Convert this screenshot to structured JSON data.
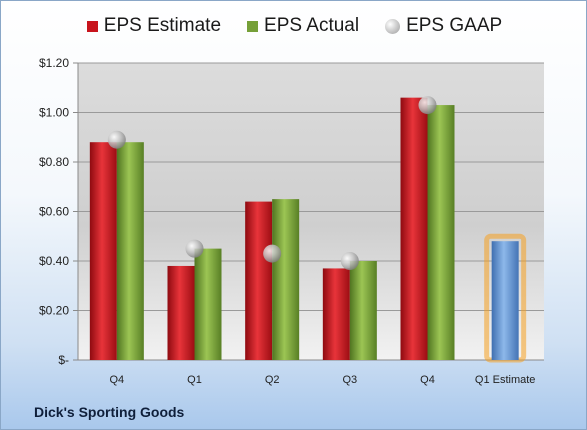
{
  "chart_data": {
    "type": "bar",
    "categories": [
      "Q4",
      "Q1",
      "Q2",
      "Q3",
      "Q4",
      "Q1 Estimate"
    ],
    "series": [
      {
        "name": "EPS Estimate",
        "values": [
          0.88,
          0.38,
          0.64,
          0.37,
          1.06,
          null
        ],
        "color": "#c8141c"
      },
      {
        "name": "EPS Actual",
        "values": [
          0.88,
          0.45,
          0.65,
          0.4,
          1.03,
          null
        ],
        "color": "#76a038"
      },
      {
        "name": "EPS GAAP",
        "values": [
          0.89,
          0.45,
          0.43,
          0.4,
          1.03,
          null
        ],
        "color": "#a0a0a0"
      }
    ],
    "forecast": {
      "category": "Q1 Estimate",
      "value": 0.48,
      "color": "#5b8fd0",
      "glow": "#f5a020"
    },
    "ylim": [
      0,
      1.2
    ],
    "yticks": [
      0,
      0.2,
      0.4,
      0.6,
      0.8,
      1.0,
      1.2
    ],
    "ytick_labels": [
      "$-",
      "$0.20",
      "$0.40",
      "$0.60",
      "$0.80",
      "$1.00",
      "$1.20"
    ],
    "grid": true,
    "legend": "top"
  },
  "legend": {
    "estimate": "EPS Estimate",
    "actual": "EPS Actual",
    "gaap": "EPS GAAP"
  },
  "company": "Dick's Sporting Goods"
}
